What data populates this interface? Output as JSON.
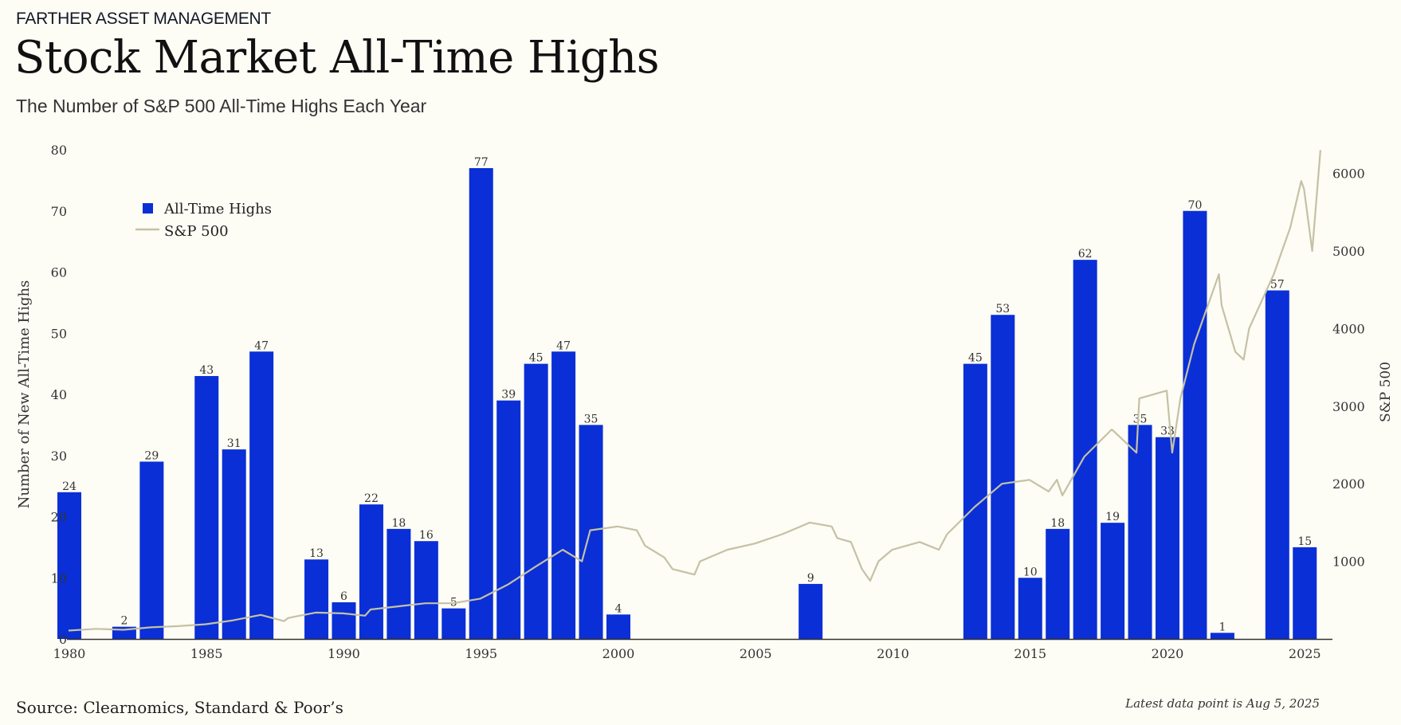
{
  "header": {
    "brand": "FARTHER ASSET MANAGEMENT",
    "title": "Stock Market All-Time Highs",
    "subtitle": "The Number of S&P 500 All-Time Highs Each Year"
  },
  "footer": {
    "source": "Source: Clearnomics, Standard & Poor’s",
    "note": "Latest data point is Aug 5, 2025"
  },
  "colors": {
    "bar": "#0a2fd6",
    "line": "#c4c1a5",
    "background": "#fdfcf5",
    "axis": "#333333"
  },
  "chart_data": {
    "type": "bar",
    "ylabel": "Number of New All-Time Highs",
    "y2label": "S&P 500",
    "ylim": [
      0,
      80
    ],
    "y2lim": [
      0,
      6300
    ],
    "yticks": [
      0,
      10,
      20,
      30,
      40,
      50,
      60,
      70,
      80
    ],
    "y2ticks": [
      1000,
      2000,
      3000,
      4000,
      5000,
      6000
    ],
    "xticks": [
      1980,
      1985,
      1990,
      1995,
      2000,
      2005,
      2010,
      2015,
      2020,
      2025
    ],
    "grid": false,
    "legend_position": "top-left",
    "series": [
      {
        "name": "All-Time Highs",
        "kind": "bar",
        "x": [
          1980,
          1981,
          1982,
          1983,
          1984,
          1985,
          1986,
          1987,
          1988,
          1989,
          1990,
          1991,
          1992,
          1993,
          1994,
          1995,
          1996,
          1997,
          1998,
          1999,
          2000,
          2001,
          2002,
          2003,
          2004,
          2005,
          2006,
          2007,
          2008,
          2009,
          2010,
          2011,
          2012,
          2013,
          2014,
          2015,
          2016,
          2017,
          2018,
          2019,
          2020,
          2021,
          2022,
          2023,
          2024,
          2025
        ],
        "values": [
          24,
          0,
          2,
          29,
          0,
          43,
          31,
          47,
          0,
          13,
          6,
          22,
          18,
          16,
          5,
          77,
          39,
          45,
          47,
          35,
          4,
          0,
          0,
          0,
          0,
          0,
          0,
          9,
          0,
          0,
          0,
          0,
          0,
          45,
          53,
          10,
          18,
          62,
          19,
          35,
          33,
          70,
          1,
          0,
          57,
          15
        ]
      },
      {
        "name": "S&P 500",
        "kind": "line",
        "x": [
          1980,
          1981,
          1982,
          1983,
          1984,
          1985,
          1986,
          1987,
          1987.85,
          1988,
          1989,
          1990,
          1990.8,
          1991,
          1992,
          1993,
          1994,
          1995,
          1996,
          1997,
          1998,
          1998.7,
          1999,
          2000,
          2000.7,
          2001,
          2001.7,
          2002,
          2002.8,
          2003,
          2004,
          2005,
          2006,
          2007,
          2007.8,
          2008,
          2008.5,
          2008.9,
          2009.2,
          2009.5,
          2010,
          2011,
          2011.7,
          2012,
          2013,
          2014,
          2015,
          2015.7,
          2016,
          2016.2,
          2017,
          2018,
          2018.9,
          2019,
          2020,
          2020.2,
          2020.5,
          2021,
          2021.9,
          2022,
          2022.5,
          2022.8,
          2023,
          2023.9,
          2024,
          2024.5,
          2024.9,
          2025,
          2025.3,
          2025.6
        ],
        "values": [
          108,
          130,
          118,
          150,
          165,
          190,
          240,
          310,
          230,
          270,
          340,
          330,
          300,
          380,
          420,
          460,
          460,
          520,
          700,
          930,
          1150,
          1000,
          1400,
          1450,
          1400,
          1200,
          1050,
          900,
          830,
          1000,
          1150,
          1230,
          1350,
          1500,
          1450,
          1300,
          1250,
          900,
          750,
          1000,
          1150,
          1250,
          1150,
          1350,
          1700,
          2000,
          2050,
          1900,
          2050,
          1850,
          2350,
          2700,
          2400,
          3100,
          3200,
          2400,
          3100,
          3800,
          4700,
          4300,
          3700,
          3600,
          4000,
          4700,
          4800,
          5300,
          5900,
          5800,
          5000,
          6300
        ]
      }
    ]
  }
}
